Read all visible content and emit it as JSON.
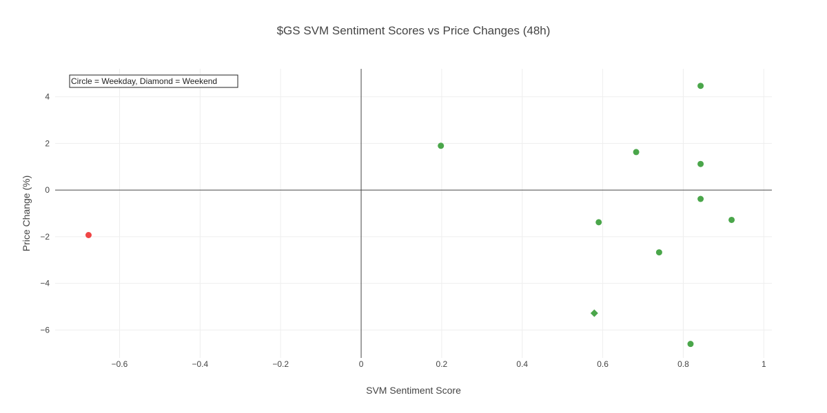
{
  "chart_data": {
    "type": "scatter",
    "title": "$GS SVM Sentiment Scores vs Price Changes (48h)",
    "xlabel": "SVM Sentiment Score",
    "ylabel": "Price Change (%)",
    "xlim": [
      -0.76,
      1.02
    ],
    "ylim": [
      -7.2,
      5.2
    ],
    "xticks": [
      -0.6,
      -0.4,
      -0.2,
      0,
      0.2,
      0.4,
      0.6,
      0.8,
      1
    ],
    "yticks": [
      -6,
      -4,
      -2,
      0,
      2,
      4
    ],
    "grid": true,
    "zero_lines": true,
    "annotation": "Circle = Weekday, Diamond = Weekend",
    "colors": {
      "positive": "#4aa64a",
      "negative": "#f04545"
    },
    "points": [
      {
        "x": -0.677,
        "y": -1.93,
        "sentiment": "negative",
        "day": "weekday"
      },
      {
        "x": 0.198,
        "y": 1.9,
        "sentiment": "positive",
        "day": "weekday"
      },
      {
        "x": 0.59,
        "y": -1.38,
        "sentiment": "positive",
        "day": "weekday"
      },
      {
        "x": 0.683,
        "y": 1.63,
        "sentiment": "positive",
        "day": "weekday"
      },
      {
        "x": 0.74,
        "y": -2.67,
        "sentiment": "positive",
        "day": "weekday"
      },
      {
        "x": 0.579,
        "y": -5.28,
        "sentiment": "positive",
        "day": "weekend"
      },
      {
        "x": 0.818,
        "y": -6.6,
        "sentiment": "positive",
        "day": "weekday"
      },
      {
        "x": 0.843,
        "y": 4.47,
        "sentiment": "positive",
        "day": "weekday"
      },
      {
        "x": 0.843,
        "y": 1.12,
        "sentiment": "positive",
        "day": "weekday"
      },
      {
        "x": 0.843,
        "y": -0.38,
        "sentiment": "positive",
        "day": "weekday"
      },
      {
        "x": 0.92,
        "y": -1.28,
        "sentiment": "positive",
        "day": "weekday"
      }
    ]
  }
}
